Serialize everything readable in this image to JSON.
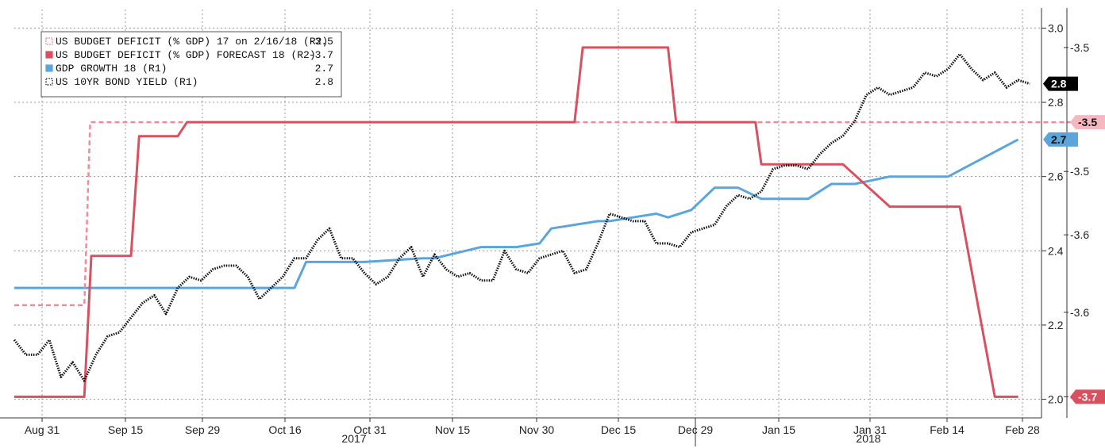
{
  "chart_data": {
    "type": "line",
    "x_tick_labels": [
      "Aug 31",
      "Sep 15",
      "Sep 29",
      "Oct 16",
      "Oct 31",
      "Nov 15",
      "Nov 30",
      "Dec 15",
      "Dec 29",
      "Jan 15",
      "Jan 31",
      "Feb 14",
      "Feb 28"
    ],
    "year_labels": [
      "2017",
      "2018"
    ],
    "r1_axis": {
      "ticks": [
        "2.0",
        "2.2",
        "2.4",
        "2.6",
        "2.8",
        "3.0"
      ],
      "range": [
        1.95,
        3.05
      ]
    },
    "r2_axis": {
      "ticks": [
        "-3.7",
        "-3.6",
        "-3.6",
        "-3.5",
        "-3.5"
      ],
      "range": [
        -3.76,
        -3.47
      ]
    },
    "legend": [
      {
        "label": "US BUDGET DEFICIT (% GDP) 17 on 2/16/18 (R2)",
        "value": "-3.5",
        "color": "#f28a9a",
        "style": "dashed"
      },
      {
        "label": "US BUDGET DEFICIT (% GDP) FORECAST 18 (R2)",
        "value": "-3.7",
        "color": "#d9505f",
        "style": "solid"
      },
      {
        "label": "GDP GROWTH 18 (R1)",
        "value": "2.7",
        "color": "#5aa5dc",
        "style": "solid"
      },
      {
        "label": "US 10YR BOND YIELD (R1)",
        "value": "2.8",
        "color": "#111111",
        "style": "dotted"
      }
    ],
    "last_value_tags": [
      {
        "text": "2.8",
        "series": "US 10YR BOND YIELD (R1)",
        "bg": "#000000",
        "fg": "#ffffff"
      },
      {
        "text": "-3.5",
        "series": "US BUDGET DEFICIT (% GDP) 17 on 2/16/18 (R2)",
        "bg": "#f7b7c1",
        "fg": "#111111"
      },
      {
        "text": "2.7",
        "series": "GDP GROWTH 18 (R1)",
        "bg": "#5aa5dc",
        "fg": "#111111"
      },
      {
        "text": "-3.7",
        "series": "US BUDGET DEFICIT (% GDP) FORECAST 18 (R2)",
        "bg": "#d9505f",
        "fg": "#ffffff"
      }
    ],
    "series": [
      {
        "name": "US BUDGET DEFICIT (% GDP) 17 on 2/16/18 (R2)",
        "axis": "R2",
        "x": [
          0,
          6,
          6.5,
          110
        ],
        "values": [
          -3.68,
          -3.68,
          -3.55,
          -3.55
        ]
      },
      {
        "name": "US BUDGET DEFICIT (% GDP) FORECAST 18 (R2)",
        "axis": "R2",
        "x": [
          0,
          6,
          6.6,
          10,
          10.7,
          14,
          14.8,
          48,
          48.7,
          56,
          56.7,
          60,
          60.5,
          61,
          63,
          63.5,
          64,
          65,
          66,
          69,
          70,
          71,
          75,
          76,
          77,
          80,
          81,
          84,
          85,
          86
        ],
        "values": [
          -3.745,
          -3.745,
          -3.645,
          -3.645,
          -3.56,
          -3.56,
          -3.55,
          -3.55,
          -3.497,
          -3.497,
          -3.55,
          -3.55,
          -3.55,
          -3.55,
          -3.55,
          -3.55,
          -3.58,
          -3.58,
          -3.58,
          -3.58,
          -3.58,
          -3.58,
          -3.61,
          -3.61,
          -3.61,
          -3.61,
          -3.61,
          -3.745,
          -3.745,
          -3.745
        ]
      },
      {
        "name": "GDP GROWTH 18 (R1)",
        "axis": "R1",
        "x": [
          0,
          5,
          10,
          15,
          20,
          24,
          25,
          30,
          35,
          36,
          40,
          41,
          43,
          45,
          46,
          50,
          51,
          53,
          55,
          56,
          58,
          60,
          62,
          64,
          66,
          68,
          70,
          72,
          75,
          80,
          86
        ],
        "values": [
          2.3,
          2.3,
          2.3,
          2.3,
          2.3,
          2.3,
          2.37,
          2.37,
          2.38,
          2.38,
          2.41,
          2.41,
          2.41,
          2.42,
          2.46,
          2.48,
          2.48,
          2.49,
          2.5,
          2.49,
          2.51,
          2.57,
          2.57,
          2.54,
          2.54,
          2.54,
          2.58,
          2.58,
          2.6,
          2.6,
          2.7
        ]
      },
      {
        "name": "US 10YR BOND YIELD (R1)",
        "axis": "R1",
        "x": [
          0,
          1,
          2,
          3,
          4,
          5,
          6,
          7,
          8,
          9,
          10,
          11,
          12,
          13,
          14,
          15,
          16,
          17,
          18,
          19,
          20,
          21,
          22,
          23,
          24,
          25,
          26,
          27,
          28,
          29,
          30,
          31,
          32,
          33,
          34,
          35,
          36,
          37,
          38,
          39,
          40,
          41,
          42,
          43,
          44,
          45,
          46,
          47,
          48,
          49,
          50,
          51,
          52,
          53,
          54,
          55,
          56,
          57,
          58,
          59,
          60,
          61,
          62,
          63,
          64,
          65,
          66,
          67,
          68,
          69,
          70,
          71,
          72,
          73,
          74,
          75,
          76,
          77,
          78,
          79,
          80,
          81,
          82,
          83,
          84,
          85,
          86,
          87
        ],
        "values": [
          2.16,
          2.12,
          2.12,
          2.16,
          2.06,
          2.1,
          2.05,
          2.12,
          2.17,
          2.18,
          2.22,
          2.26,
          2.28,
          2.23,
          2.3,
          2.33,
          2.32,
          2.35,
          2.36,
          2.36,
          2.33,
          2.27,
          2.3,
          2.33,
          2.38,
          2.38,
          2.43,
          2.46,
          2.38,
          2.38,
          2.34,
          2.31,
          2.33,
          2.38,
          2.41,
          2.33,
          2.39,
          2.35,
          2.33,
          2.34,
          2.32,
          2.32,
          2.4,
          2.35,
          2.34,
          2.38,
          2.39,
          2.4,
          2.34,
          2.35,
          2.42,
          2.5,
          2.49,
          2.48,
          2.48,
          2.42,
          2.42,
          2.41,
          2.45,
          2.46,
          2.47,
          2.52,
          2.55,
          2.54,
          2.56,
          2.62,
          2.63,
          2.63,
          2.62,
          2.66,
          2.69,
          2.71,
          2.75,
          2.82,
          2.84,
          2.82,
          2.83,
          2.84,
          2.88,
          2.87,
          2.89,
          2.93,
          2.89,
          2.86,
          2.88,
          2.84,
          2.86,
          2.85
        ]
      }
    ],
    "x_domain": [
      0,
      88
    ]
  }
}
